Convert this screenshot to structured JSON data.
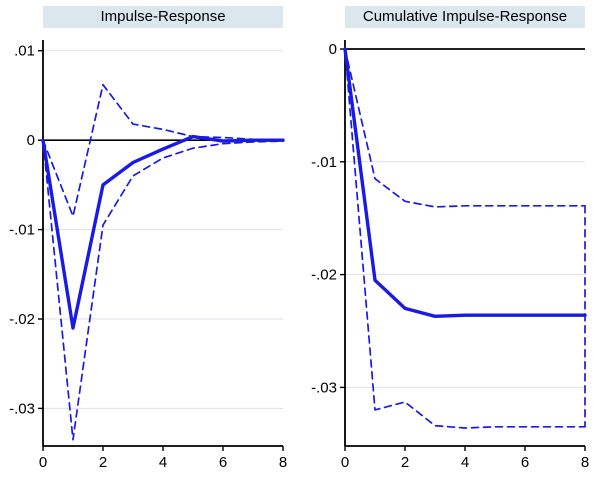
{
  "figure": {
    "background": "#ffffff"
  },
  "chart_data": [
    {
      "type": "line",
      "title": "Impulse-Response",
      "x": [
        0,
        1,
        2,
        3,
        4,
        5,
        6,
        7,
        8
      ],
      "xlim": [
        0,
        8
      ],
      "ylim": [
        -0.0342,
        0.0112
      ],
      "xtick_values": [
        0,
        2,
        4,
        6,
        8
      ],
      "xtick_labels": [
        "0",
        "2",
        "4",
        "6",
        "8"
      ],
      "ytick_values": [
        0.01,
        0,
        -0.01,
        -0.02,
        -0.03
      ],
      "ytick_labels": [
        ".01",
        "0",
        "-.01",
        "-.02",
        "-.03"
      ],
      "grid": true,
      "legend": "none",
      "zero_line": true,
      "line_color": "#1a1ae6",
      "grid_color": "#dae2e8",
      "title_bg": "#dbe7ef",
      "series": [
        {
          "name": "ci-upper-dashed",
          "dash": true,
          "width": 1.7,
          "values": [
            0,
            -0.0085,
            0.0062,
            0.0018,
            0.0012,
            0.0004,
            0.0003,
            0.0001,
            0.0001
          ]
        },
        {
          "name": "ci-lower-dashed",
          "dash": true,
          "width": 1.7,
          "values": [
            0,
            -0.0335,
            -0.0095,
            -0.004,
            -0.002,
            -0.0009,
            -0.0004,
            -0.0002,
            -0.0001
          ]
        },
        {
          "name": "impulse-response-line",
          "dash": false,
          "width": 3.4,
          "values": [
            0,
            -0.021,
            -0.005,
            -0.0025,
            -0.001,
            0.0004,
            -0.0001,
            0,
            0
          ]
        }
      ]
    },
    {
      "type": "line",
      "title": "Cumulative Impulse-Response",
      "x": [
        0,
        1,
        2,
        3,
        4,
        5,
        6,
        7,
        8
      ],
      "xlim": [
        0,
        8
      ],
      "ylim": [
        -0.0352,
        0.0008
      ],
      "xtick_values": [
        0,
        2,
        4,
        6,
        8
      ],
      "xtick_labels": [
        "0",
        "2",
        "4",
        "6",
        "8"
      ],
      "ytick_values": [
        0,
        -0.01,
        -0.02,
        -0.03
      ],
      "ytick_labels": [
        "0",
        "-.01",
        "-.02",
        "-.03"
      ],
      "grid": true,
      "legend": "none",
      "zero_line": true,
      "line_color": "#1a1ae6",
      "grid_color": "#dae2e8",
      "title_bg": "#dbe7ef",
      "series": [
        {
          "name": "ci-upper-dashed",
          "dash": true,
          "width": 1.7,
          "values": [
            0,
            -0.0115,
            -0.0135,
            -0.014,
            -0.0139,
            -0.0139,
            -0.0139,
            -0.0139,
            -0.0139
          ]
        },
        {
          "name": "ci-lower-dashed",
          "dash": true,
          "width": 1.7,
          "values": [
            0,
            -0.032,
            -0.0313,
            -0.0334,
            -0.0336,
            -0.0335,
            -0.0335,
            -0.0335,
            -0.0335
          ]
        },
        {
          "name": "ci-right-edge-cap",
          "dash": true,
          "width": 1.7,
          "x": [
            8,
            8
          ],
          "values": [
            -0.0139,
            -0.0335
          ]
        },
        {
          "name": "cumulative-impulse-response-line",
          "dash": false,
          "width": 3.4,
          "values": [
            0,
            -0.0205,
            -0.023,
            -0.0237,
            -0.0236,
            -0.0236,
            -0.0236,
            -0.0236,
            -0.0236
          ]
        }
      ]
    }
  ]
}
